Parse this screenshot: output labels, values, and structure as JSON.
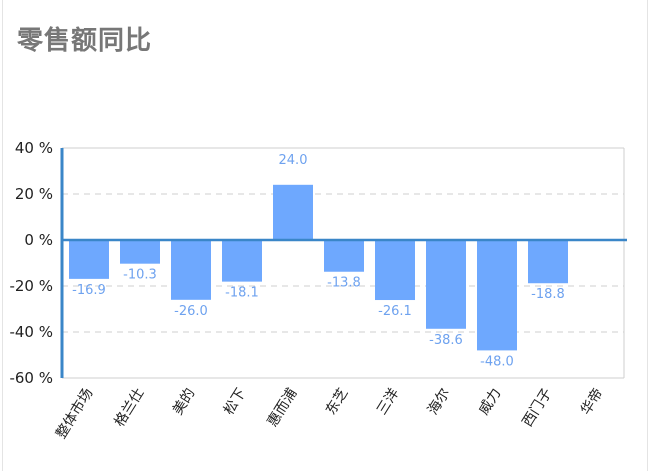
{
  "chart_data": {
    "type": "bar",
    "title": "零售额同比",
    "xlabel": "",
    "ylabel": "",
    "categories": [
      "整体市场",
      "格兰仕",
      "美的",
      "松下",
      "惠而浦",
      "东芝",
      "三洋",
      "海尔",
      "威力",
      "西门子",
      "华帝"
    ],
    "values": [
      -16.9,
      -10.3,
      -26.0,
      -18.1,
      24.0,
      -13.8,
      -26.1,
      -38.6,
      -48.0,
      -18.8,
      null
    ],
    "value_labels": [
      "-16.9",
      "-10.3",
      "-26.0",
      "-18.1",
      "24.0",
      "-13.8",
      "-26.1",
      "-38.6",
      "-48.0",
      "-18.8",
      ""
    ],
    "ylim": [
      -60,
      40
    ],
    "yticks": [
      40,
      20,
      0,
      -20,
      -40,
      -60
    ],
    "ytick_labels": [
      "40 %",
      "20 %",
      "0 %",
      "-20 %",
      "-40 %",
      "-60 %"
    ],
    "grid": "horizontal-dashed",
    "legend": "none",
    "colors": {
      "bar": "#6ea8fe",
      "data_label": "#6ea2ef",
      "axis": "#3a86c8",
      "zero_line": "#3a86c8",
      "grid": "#cfcfcf",
      "title": "#777777"
    }
  }
}
